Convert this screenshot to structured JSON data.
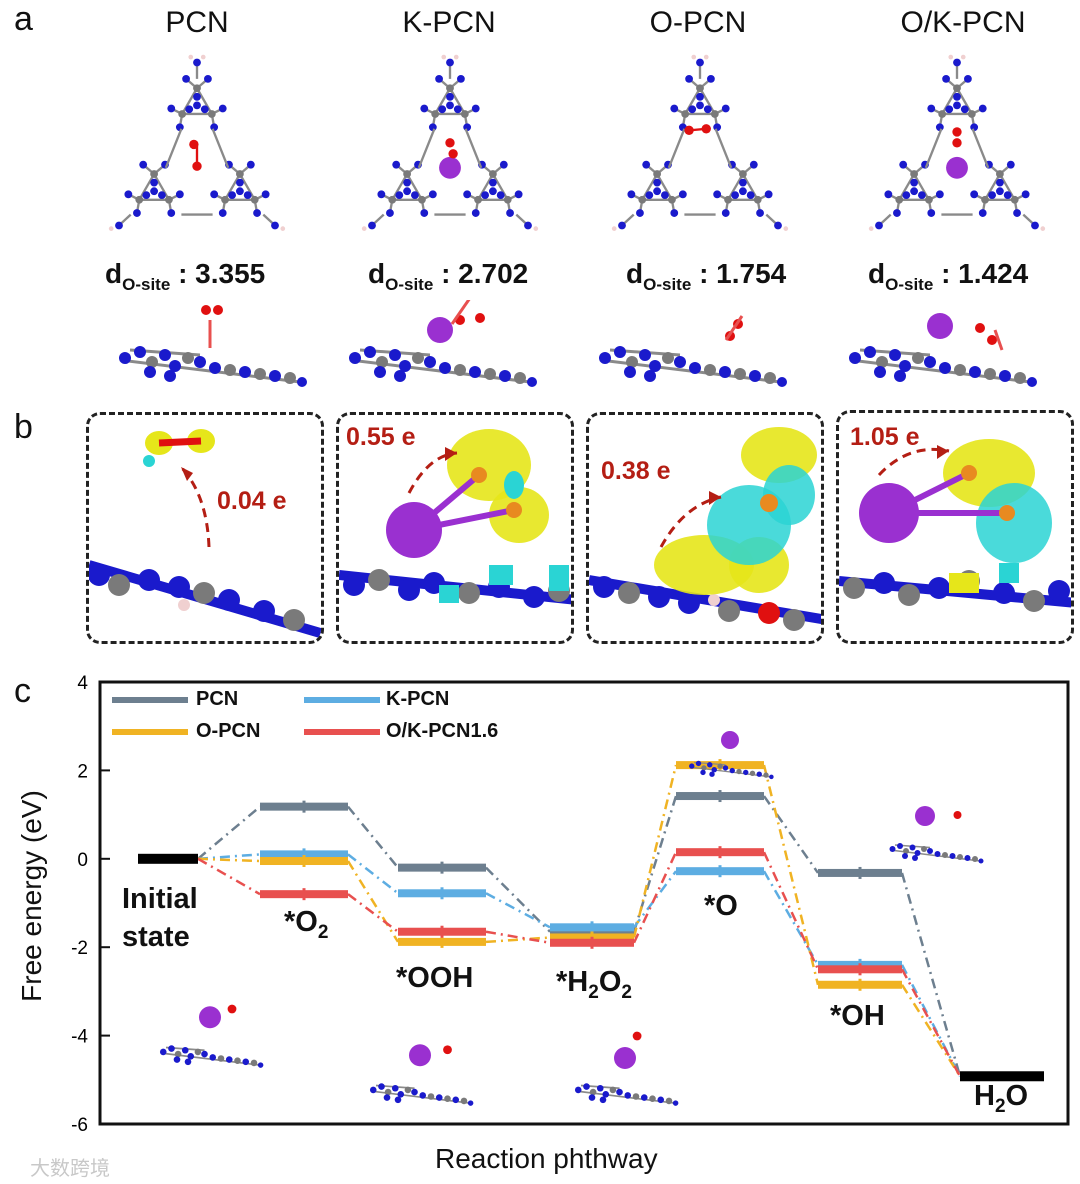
{
  "panel_letters": {
    "a": "a",
    "b": "b",
    "c": "c"
  },
  "panel_a": {
    "titles": [
      "PCN",
      "K-PCN",
      "O-PCN",
      "O/K-PCN"
    ],
    "d_prefix": "d",
    "d_sub": "O-site",
    "d_values": [
      " : 3.355",
      " : 2.702",
      " : 1.754",
      " : 1.424"
    ]
  },
  "panel_b": {
    "charges": [
      "0.04 e",
      "0.55 e",
      "0.38 e",
      "1.05 e"
    ]
  },
  "colors": {
    "PCN": "#6d7f8f",
    "K-PCN": "#5dade2",
    "O-PCN": "#f0b323",
    "O/K-PCN1.6": "#e8504f",
    "initial": "#000000",
    "charge_arrow": "#b41e14",
    "nitrogen": "#1a1acc",
    "carbon": "#7a7a7a",
    "potassium": "#9a30d0",
    "oxygen": "#e01010",
    "iso_yellow": "#e6e61a",
    "iso_cyan": "#2ad4d4"
  },
  "chart_data": {
    "type": "energy-profile",
    "xlabel": "Reaction phthway",
    "ylabel": "Free energy (eV)",
    "ylim": [
      -6,
      4
    ],
    "yticks": [
      4,
      2,
      0,
      -2,
      -4,
      -6
    ],
    "ytick_labels": [
      "4",
      "2",
      "0",
      "-2",
      "-4",
      "-6"
    ],
    "states": [
      {
        "key": "initial",
        "label": "Initial\nstate"
      },
      {
        "key": "O2",
        "label": "*O",
        "sub": "2"
      },
      {
        "key": "OOH",
        "label": "*OOH"
      },
      {
        "key": "H2O2",
        "label": "*H",
        "sub": "2",
        "label2": "O",
        "sub2": "2"
      },
      {
        "key": "O",
        "label": "*O"
      },
      {
        "key": "OH",
        "label": "*OH"
      },
      {
        "key": "H2O",
        "label": "H",
        "sub": "2",
        "label2": "O"
      }
    ],
    "state_labels": {
      "initial_line1": "Initial",
      "initial_line2": "state",
      "O2_main": "*O",
      "O2_sub": "2",
      "OOH": "*OOH",
      "H2O2_a": "*H",
      "H2O2_b": "2",
      "H2O2_c": "O",
      "H2O2_d": "2",
      "O": "*O",
      "OH": "*OH",
      "H2O_a": "H",
      "H2O_b": "2",
      "H2O_c": "O"
    },
    "series": [
      {
        "name": "PCN",
        "values": [
          0,
          1.18,
          -0.2,
          -1.65,
          1.42,
          -0.32,
          -4.92
        ]
      },
      {
        "name": "K-PCN",
        "values": [
          0,
          0.1,
          -0.78,
          -1.55,
          -0.28,
          -2.4,
          -4.92
        ]
      },
      {
        "name": "O-PCN",
        "values": [
          0,
          -0.05,
          -1.88,
          -1.78,
          2.12,
          -2.85,
          -4.92
        ]
      },
      {
        "name": "O/K-PCN1.6",
        "values": [
          0,
          -0.8,
          -1.65,
          -1.9,
          0.15,
          -2.5,
          -4.92
        ]
      }
    ],
    "legend": [
      "PCN",
      "K-PCN",
      "O-PCN",
      "O/K-PCN1.6"
    ]
  },
  "watermark": "大数跨境"
}
